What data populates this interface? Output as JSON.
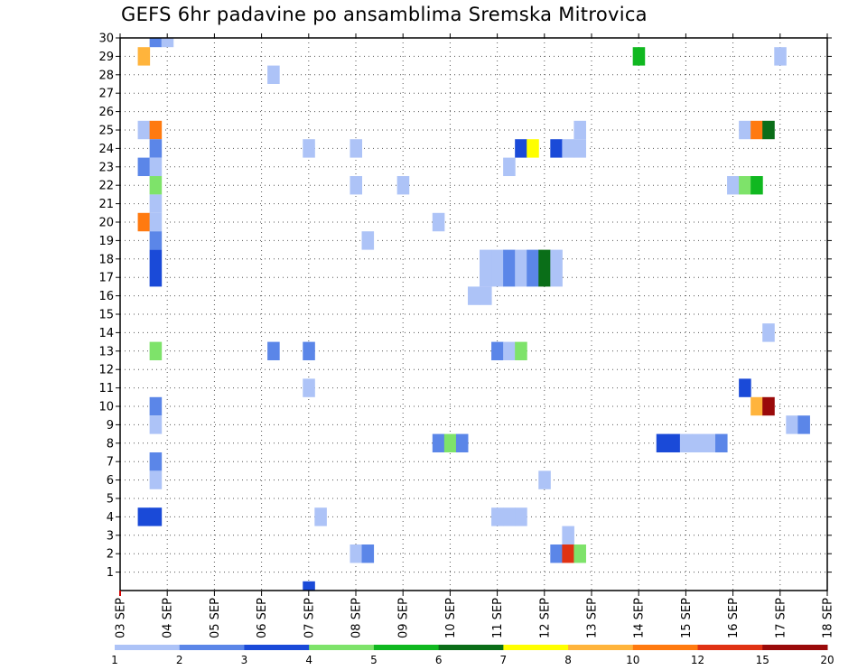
{
  "chart_data": {
    "type": "heatmap",
    "title": "GEFS 6hr padavine po ansamblima Sremska Mitrovica",
    "xlabel": "",
    "ylabel": "",
    "x_ticks": [
      "03 SEP",
      "04 SEP",
      "05 SEP",
      "06 SEP",
      "07 SEP",
      "08 SEP",
      "09 SEP",
      "10 SEP",
      "11 SEP",
      "12 SEP",
      "13 SEP",
      "14 SEP",
      "15 SEP",
      "16 SEP",
      "17 SEP",
      "18 SEP"
    ],
    "y_ticks": [
      "1",
      "2",
      "3",
      "4",
      "5",
      "6",
      "7",
      "8",
      "9",
      "10",
      "11",
      "12",
      "13",
      "14",
      "15",
      "16",
      "17",
      "18",
      "19",
      "20",
      "21",
      "22",
      "23",
      "24",
      "25",
      "26",
      "27",
      "28",
      "29",
      "30"
    ],
    "x_range_days": [
      3,
      18
    ],
    "x_step_hours": 6,
    "y_range": [
      0,
      30
    ],
    "grid": true,
    "legend": {
      "position": "bottom",
      "colors": [
        "#adc3f7",
        "#5b86e8",
        "#1a4ad8",
        "#7ee36a",
        "#10b820",
        "#0a6e18",
        "#ffff00",
        "#ffb43c",
        "#ff7a10",
        "#e03214",
        "#9a0a0a"
      ],
      "labels": [
        "1",
        "2",
        "3",
        "4",
        "5",
        "6",
        "7",
        "8",
        "10",
        "12",
        "15",
        "20"
      ]
    },
    "cells": [
      {
        "member": 30,
        "x": 3.75,
        "level": 1
      },
      {
        "member": 30,
        "x": 4.0,
        "level": 0
      },
      {
        "member": 29,
        "x": 3.5,
        "level": 7
      },
      {
        "member": 29,
        "x": 14.0,
        "level": 4
      },
      {
        "member": 29,
        "x": 17.0,
        "level": 0
      },
      {
        "member": 28,
        "x": 6.25,
        "level": 0
      },
      {
        "member": 25,
        "x": 3.5,
        "level": 0
      },
      {
        "member": 25,
        "x": 3.75,
        "level": 8
      },
      {
        "member": 25,
        "x": 12.75,
        "level": 0
      },
      {
        "member": 25,
        "x": 16.25,
        "level": 0
      },
      {
        "member": 25,
        "x": 16.5,
        "level": 8
      },
      {
        "member": 25,
        "x": 16.75,
        "level": 5
      },
      {
        "member": 24,
        "x": 3.75,
        "level": 1
      },
      {
        "member": 24,
        "x": 7.0,
        "level": 0
      },
      {
        "member": 24,
        "x": 8.0,
        "level": 0
      },
      {
        "member": 24,
        "x": 11.5,
        "level": 2
      },
      {
        "member": 24,
        "x": 11.75,
        "level": 6
      },
      {
        "member": 24,
        "x": 12.25,
        "level": 2
      },
      {
        "member": 24,
        "x": 12.5,
        "level": 0
      },
      {
        "member": 24,
        "x": 12.75,
        "level": 0
      },
      {
        "member": 23,
        "x": 3.5,
        "level": 1
      },
      {
        "member": 23,
        "x": 3.75,
        "level": 0
      },
      {
        "member": 23,
        "x": 11.25,
        "level": 0
      },
      {
        "member": 22,
        "x": 3.75,
        "level": 3
      },
      {
        "member": 22,
        "x": 8.0,
        "level": 0
      },
      {
        "member": 22,
        "x": 9.0,
        "level": 0
      },
      {
        "member": 22,
        "x": 16.0,
        "level": 0
      },
      {
        "member": 22,
        "x": 16.25,
        "level": 3
      },
      {
        "member": 22,
        "x": 16.5,
        "level": 4
      },
      {
        "member": 21,
        "x": 3.75,
        "level": 0
      },
      {
        "member": 20,
        "x": 3.5,
        "level": 8
      },
      {
        "member": 20,
        "x": 3.75,
        "level": 0
      },
      {
        "member": 20,
        "x": 9.75,
        "level": 0
      },
      {
        "member": 19,
        "x": 3.75,
        "level": 1
      },
      {
        "member": 19,
        "x": 8.25,
        "level": 0
      },
      {
        "member": 18,
        "x": 3.75,
        "level": 2
      },
      {
        "member": 18,
        "x": 10.75,
        "level": 0
      },
      {
        "member": 18,
        "x": 11.0,
        "level": 0
      },
      {
        "member": 18,
        "x": 11.25,
        "level": 1
      },
      {
        "member": 18,
        "x": 11.5,
        "level": 0
      },
      {
        "member": 18,
        "x": 11.75,
        "level": 1
      },
      {
        "member": 18,
        "x": 12.0,
        "level": 5
      },
      {
        "member": 18,
        "x": 12.25,
        "level": 0
      },
      {
        "member": 17,
        "x": 3.75,
        "level": 2
      },
      {
        "member": 17,
        "x": 10.75,
        "level": 0
      },
      {
        "member": 17,
        "x": 11.0,
        "level": 0
      },
      {
        "member": 17,
        "x": 11.25,
        "level": 1
      },
      {
        "member": 17,
        "x": 11.5,
        "level": 0
      },
      {
        "member": 17,
        "x": 11.75,
        "level": 1
      },
      {
        "member": 17,
        "x": 12.0,
        "level": 5
      },
      {
        "member": 17,
        "x": 12.25,
        "level": 0
      },
      {
        "member": 16,
        "x": 10.5,
        "level": 0
      },
      {
        "member": 16,
        "x": 10.75,
        "level": 0
      },
      {
        "member": 14,
        "x": 16.75,
        "level": 0
      },
      {
        "member": 13,
        "x": 3.75,
        "level": 3
      },
      {
        "member": 13,
        "x": 6.25,
        "level": 1
      },
      {
        "member": 13,
        "x": 7.0,
        "level": 1
      },
      {
        "member": 13,
        "x": 11.0,
        "level": 1
      },
      {
        "member": 13,
        "x": 11.25,
        "level": 0
      },
      {
        "member": 13,
        "x": 11.5,
        "level": 3
      },
      {
        "member": 11,
        "x": 7.0,
        "level": 0
      },
      {
        "member": 11,
        "x": 16.25,
        "level": 2
      },
      {
        "member": 10,
        "x": 3.75,
        "level": 1
      },
      {
        "member": 10,
        "x": 16.5,
        "level": 7
      },
      {
        "member": 10,
        "x": 16.75,
        "level": 10
      },
      {
        "member": 9,
        "x": 3.75,
        "level": 0
      },
      {
        "member": 9,
        "x": 17.25,
        "level": 0
      },
      {
        "member": 9,
        "x": 17.5,
        "level": 1
      },
      {
        "member": 8,
        "x": 9.75,
        "level": 1
      },
      {
        "member": 8,
        "x": 10.0,
        "level": 3
      },
      {
        "member": 8,
        "x": 10.25,
        "level": 1
      },
      {
        "member": 8,
        "x": 14.5,
        "level": 2
      },
      {
        "member": 8,
        "x": 14.75,
        "level": 2
      },
      {
        "member": 8,
        "x": 15.0,
        "level": 0
      },
      {
        "member": 8,
        "x": 15.25,
        "level": 0
      },
      {
        "member": 8,
        "x": 15.5,
        "level": 0
      },
      {
        "member": 8,
        "x": 15.75,
        "level": 1
      },
      {
        "member": 7,
        "x": 3.75,
        "level": 1
      },
      {
        "member": 6,
        "x": 3.75,
        "level": 0
      },
      {
        "member": 6,
        "x": 12.0,
        "level": 0
      },
      {
        "member": 4,
        "x": 3.5,
        "level": 2
      },
      {
        "member": 4,
        "x": 3.75,
        "level": 2
      },
      {
        "member": 4,
        "x": 7.25,
        "level": 0
      },
      {
        "member": 4,
        "x": 11.0,
        "level": 0
      },
      {
        "member": 4,
        "x": 11.25,
        "level": 0
      },
      {
        "member": 4,
        "x": 11.5,
        "level": 0
      },
      {
        "member": 3,
        "x": 12.5,
        "level": 0
      },
      {
        "member": 2,
        "x": 8.0,
        "level": 0
      },
      {
        "member": 2,
        "x": 8.25,
        "level": 1
      },
      {
        "member": 2,
        "x": 12.25,
        "level": 1
      },
      {
        "member": 2,
        "x": 12.5,
        "level": 9
      },
      {
        "member": 2,
        "x": 12.75,
        "level": 3
      },
      {
        "member": 0,
        "x": 7.0,
        "level": 2
      }
    ]
  }
}
